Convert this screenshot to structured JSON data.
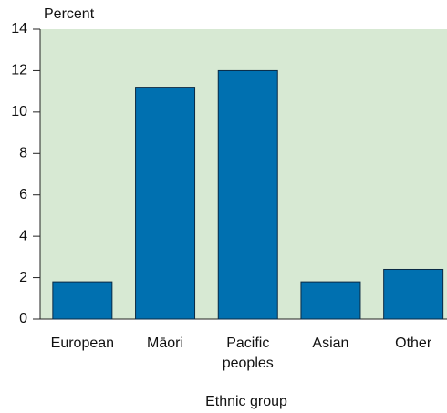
{
  "chart_data": {
    "type": "bar",
    "y_label": "Percent",
    "x_label": "Ethnic group",
    "categories": [
      "European",
      "Māori",
      "Pacific peoples",
      "Asian",
      "Other"
    ],
    "values": [
      1.8,
      11.2,
      12.0,
      1.8,
      2.4
    ],
    "color": "#0070b0",
    "ylim": [
      0,
      14
    ],
    "yticks": [
      0,
      2,
      4,
      6,
      8,
      10,
      12,
      14
    ]
  }
}
